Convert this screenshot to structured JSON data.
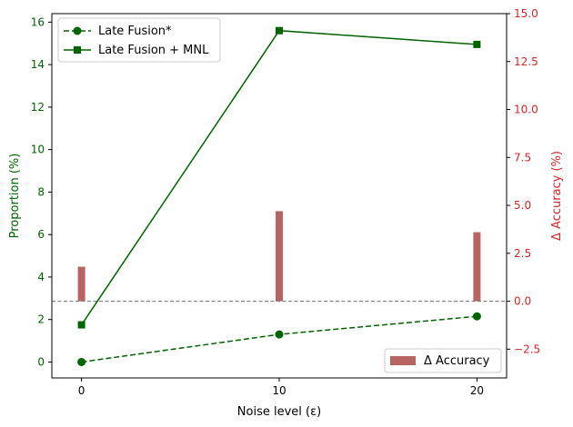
{
  "chart_data": {
    "type": "line",
    "xlabel": "Noise level (ε)",
    "ylabel": "Proportion (%)",
    "y2label": "Δ Accuracy (%)",
    "x": [
      0,
      10,
      20
    ],
    "xlim": [
      -1.5,
      21.5
    ],
    "xticks": [
      "0",
      "10",
      "20"
    ],
    "ylim": [
      -0.75,
      16.4
    ],
    "yticks": [
      "0",
      "2",
      "4",
      "6",
      "8",
      "10",
      "12",
      "14",
      "16"
    ],
    "y2lim": [
      -4.0,
      15.0
    ],
    "y2ticks": [
      "−2.5",
      "0.0",
      "2.5",
      "5.0",
      "7.5",
      "10.0",
      "12.5",
      "15.0"
    ],
    "series": [
      {
        "name": "Late Fusion*",
        "axis": "left",
        "style": "dashed",
        "marker": "circle",
        "values": [
          0.0,
          1.3,
          2.15
        ]
      },
      {
        "name": "Late Fusion + MNL",
        "axis": "left",
        "style": "solid",
        "marker": "square",
        "values": [
          1.75,
          15.6,
          14.95
        ]
      }
    ],
    "bars": {
      "name": "Δ Accuracy",
      "axis": "right",
      "values": [
        1.8,
        4.7,
        3.6
      ]
    },
    "reference_line": {
      "axis": "right",
      "value": 0.0
    },
    "legend_top": "upper-left",
    "legend_bars": "lower-right",
    "colors": {
      "line": "#006400",
      "bar": "#b86463",
      "right_axis": "#d62728",
      "reference": "#808080"
    }
  }
}
